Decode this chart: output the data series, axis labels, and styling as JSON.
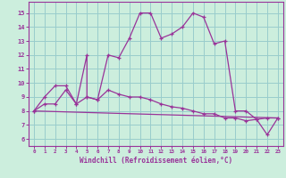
{
  "xlabel": "Windchill (Refroidissement éolien,°C)",
  "bg_color": "#cceedd",
  "line_color": "#993399",
  "grid_color": "#99cccc",
  "xlim": [
    -0.5,
    23.5
  ],
  "ylim": [
    5.5,
    15.8
  ],
  "yticks": [
    6,
    7,
    8,
    9,
    10,
    11,
    12,
    13,
    14,
    15
  ],
  "xticks": [
    0,
    1,
    2,
    3,
    4,
    5,
    6,
    7,
    8,
    9,
    10,
    11,
    12,
    13,
    14,
    15,
    16,
    17,
    18,
    19,
    20,
    21,
    22,
    23
  ],
  "series1_x": [
    0,
    1,
    2,
    3,
    4,
    5,
    5,
    6,
    7,
    8,
    9,
    10,
    11,
    12,
    13,
    14,
    15,
    16,
    17,
    18,
    19,
    20,
    21,
    22,
    23
  ],
  "series1_y": [
    8.0,
    9.0,
    9.8,
    9.8,
    8.5,
    12.0,
    9.0,
    8.8,
    12.0,
    11.8,
    13.2,
    15.0,
    15.0,
    13.2,
    13.5,
    14.0,
    15.0,
    14.7,
    12.8,
    13.0,
    8.0,
    8.0,
    7.4,
    7.5,
    7.5
  ],
  "series2_x": [
    0,
    1,
    2,
    3,
    4,
    5,
    6,
    7,
    8,
    9,
    10,
    11,
    12,
    13,
    14,
    15,
    16,
    17,
    18,
    19,
    20,
    21,
    22,
    23
  ],
  "series2_y": [
    8.0,
    8.5,
    8.5,
    9.5,
    8.5,
    9.0,
    8.8,
    9.5,
    9.2,
    9.0,
    9.0,
    8.8,
    8.5,
    8.3,
    8.2,
    8.0,
    7.8,
    7.8,
    7.5,
    7.5,
    7.3,
    7.4,
    6.3,
    7.5
  ],
  "series3_x": [
    0,
    23
  ],
  "series3_y": [
    8.0,
    7.5
  ]
}
